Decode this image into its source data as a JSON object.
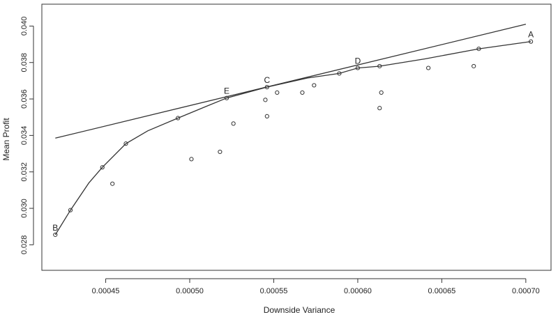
{
  "chart_data": {
    "type": "scatter",
    "xlabel": "Downside Variance",
    "ylabel": "Mean Profit",
    "xlim": [
      0.000412,
      0.000715
    ],
    "ylim": [
      0.0266,
      0.0412
    ],
    "x_ticks": [
      0.00045,
      0.0005,
      0.00055,
      0.0006,
      0.00065,
      0.0007
    ],
    "x_tick_labels": [
      "0.00045",
      "0.00050",
      "0.00055",
      "0.00060",
      "0.00065",
      "0.00070"
    ],
    "y_ticks": [
      0.028,
      0.03,
      0.032,
      0.034,
      0.036,
      0.038,
      0.04
    ],
    "y_tick_labels": [
      "0.028",
      "0.030",
      "0.032",
      "0.034",
      "0.036",
      "0.038",
      "0.040"
    ],
    "grid": false,
    "points": [
      {
        "x": 0.00042,
        "y": 0.02855
      },
      {
        "x": 0.000429,
        "y": 0.0299
      },
      {
        "x": 0.000448,
        "y": 0.03225
      },
      {
        "x": 0.000454,
        "y": 0.03135
      },
      {
        "x": 0.000462,
        "y": 0.03355
      },
      {
        "x": 0.000493,
        "y": 0.03495
      },
      {
        "x": 0.000501,
        "y": 0.0327
      },
      {
        "x": 0.000518,
        "y": 0.0331
      },
      {
        "x": 0.000522,
        "y": 0.03605
      },
      {
        "x": 0.000526,
        "y": 0.03465
      },
      {
        "x": 0.000545,
        "y": 0.03595
      },
      {
        "x": 0.000546,
        "y": 0.03665
      },
      {
        "x": 0.000546,
        "y": 0.03505
      },
      {
        "x": 0.000552,
        "y": 0.03635
      },
      {
        "x": 0.000567,
        "y": 0.03635
      },
      {
        "x": 0.000574,
        "y": 0.03675
      },
      {
        "x": 0.000589,
        "y": 0.0374
      },
      {
        "x": 0.0006,
        "y": 0.0377
      },
      {
        "x": 0.000613,
        "y": 0.0355
      },
      {
        "x": 0.000613,
        "y": 0.0378
      },
      {
        "x": 0.000614,
        "y": 0.03635
      },
      {
        "x": 0.000642,
        "y": 0.0377
      },
      {
        "x": 0.000669,
        "y": 0.0378
      },
      {
        "x": 0.000672,
        "y": 0.03875
      },
      {
        "x": 0.000703,
        "y": 0.03915
      }
    ],
    "frontier_curve": [
      {
        "x": 0.00042,
        "y": 0.02855
      },
      {
        "x": 0.000429,
        "y": 0.0299
      },
      {
        "x": 0.00044,
        "y": 0.0314
      },
      {
        "x": 0.000448,
        "y": 0.03225
      },
      {
        "x": 0.000462,
        "y": 0.03355
      },
      {
        "x": 0.000475,
        "y": 0.03425
      },
      {
        "x": 0.000493,
        "y": 0.03495
      },
      {
        "x": 0.00051,
        "y": 0.0356
      },
      {
        "x": 0.000522,
        "y": 0.03605
      },
      {
        "x": 0.000546,
        "y": 0.03665
      },
      {
        "x": 0.00057,
        "y": 0.03715
      },
      {
        "x": 0.000589,
        "y": 0.0374
      },
      {
        "x": 0.0006,
        "y": 0.0377
      },
      {
        "x": 0.000613,
        "y": 0.0378
      },
      {
        "x": 0.00064,
        "y": 0.0382
      },
      {
        "x": 0.000672,
        "y": 0.03875
      },
      {
        "x": 0.000703,
        "y": 0.03915
      }
    ],
    "tangent_line": [
      {
        "x": 0.00042,
        "y": 0.03385
      },
      {
        "x": 0.0007,
        "y": 0.0401
      }
    ],
    "point_labels": [
      {
        "text": "A",
        "x": 0.000703,
        "y": 0.03915
      },
      {
        "text": "B",
        "x": 0.00042,
        "y": 0.02855
      },
      {
        "text": "C",
        "x": 0.000546,
        "y": 0.03665
      },
      {
        "text": "D",
        "x": 0.0006,
        "y": 0.0377
      },
      {
        "text": "E",
        "x": 0.000522,
        "y": 0.03605
      }
    ]
  }
}
